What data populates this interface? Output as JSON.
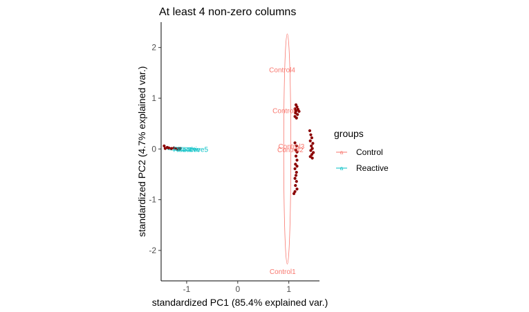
{
  "chart_data": {
    "type": "scatter",
    "title": "At least 4 non-zero columns",
    "xlabel": "standardized PC1 (85.4% explained var.)",
    "ylabel": "standardized PC2 (4.7% explained var.)",
    "xlim": [
      -1.5,
      1.6
    ],
    "ylim": [
      -2.6,
      2.5
    ],
    "x_ticks": [
      -1,
      0,
      1
    ],
    "y_ticks": [
      -2,
      -1,
      0,
      1,
      2
    ],
    "grid": false,
    "legend": {
      "title": "groups",
      "placement": "right",
      "entries": [
        {
          "label": "Control",
          "color": "#F8766D"
        },
        {
          "label": "Reactive",
          "color": "#00BFC4"
        }
      ]
    },
    "groups": [
      {
        "name": "Control",
        "color": "#F8766D",
        "ellipse": {
          "cx": 0.97,
          "cy": 0.0,
          "rx": 0.07,
          "ry": 2.27
        }
      },
      {
        "name": "Reactive",
        "color": "#00BFC4",
        "ellipse": {
          "cx": -1.1,
          "cy": 0.0,
          "rx": 0.28,
          "ry": 0.03
        }
      }
    ],
    "point_labels": [
      {
        "text": "Control4",
        "x": 0.87,
        "y": 1.55,
        "group": "Control"
      },
      {
        "text": "Control",
        "x": 0.9,
        "y": 0.74,
        "group": "Control"
      },
      {
        "text": "Control3",
        "x": 1.05,
        "y": 0.04,
        "group": "Control"
      },
      {
        "text": "Control2",
        "x": 1.03,
        "y": -0.03,
        "group": "Control"
      },
      {
        "text": "Control1",
        "x": 0.88,
        "y": -2.43,
        "group": "Control"
      },
      {
        "text": "Reactive",
        "x": -1.0,
        "y": -0.02,
        "group": "Reactive"
      },
      {
        "text": "Reactive5",
        "x": -0.88,
        "y": -0.02,
        "group": "Reactive"
      }
    ],
    "point_color": "#8B0000",
    "points": [
      [
        -1.44,
        0.06
      ],
      [
        -1.42,
        0.01
      ],
      [
        -1.38,
        0.03
      ],
      [
        -1.35,
        0.02
      ],
      [
        -1.3,
        0.01
      ],
      [
        -1.25,
        0.02
      ],
      [
        -1.21,
        0.01
      ],
      [
        -1.18,
        0.0
      ],
      [
        -1.16,
        0.01
      ],
      [
        -1.14,
        0.0
      ],
      [
        -1.12,
        0.01
      ],
      [
        1.14,
        0.87
      ],
      [
        1.16,
        0.83
      ],
      [
        1.12,
        0.79
      ],
      [
        1.18,
        0.78
      ],
      [
        1.14,
        0.75
      ],
      [
        1.2,
        0.74
      ],
      [
        1.13,
        0.71
      ],
      [
        1.17,
        0.68
      ],
      [
        1.12,
        0.64
      ],
      [
        1.15,
        0.61
      ],
      [
        1.41,
        0.36
      ],
      [
        1.43,
        0.28
      ],
      [
        1.45,
        0.22
      ],
      [
        1.42,
        0.16
      ],
      [
        1.47,
        0.11
      ],
      [
        1.44,
        0.06
      ],
      [
        1.46,
        0.01
      ],
      [
        1.43,
        -0.03
      ],
      [
        1.48,
        -0.07
      ],
      [
        1.45,
        -0.11
      ],
      [
        1.42,
        -0.15
      ],
      [
        1.46,
        -0.18
      ],
      [
        1.12,
        0.12
      ],
      [
        1.15,
        0.06
      ],
      [
        1.13,
        -0.02
      ],
      [
        1.16,
        -0.06
      ],
      [
        1.14,
        -0.14
      ],
      [
        1.16,
        -0.22
      ],
      [
        1.13,
        -0.3
      ],
      [
        1.16,
        -0.34
      ],
      [
        1.12,
        -0.39
      ],
      [
        1.15,
        -0.46
      ],
      [
        1.14,
        -0.52
      ],
      [
        1.12,
        -0.58
      ],
      [
        1.15,
        -0.64
      ],
      [
        1.13,
        -0.72
      ],
      [
        1.16,
        -0.79
      ],
      [
        1.12,
        -0.84
      ],
      [
        1.1,
        -0.88
      ]
    ]
  }
}
